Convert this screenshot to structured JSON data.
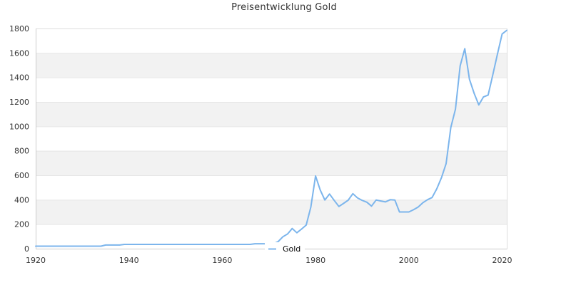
{
  "chart_data": {
    "type": "line",
    "title": "Preisentwicklung Gold",
    "xlabel": "",
    "ylabel": "",
    "xlim": [
      1920,
      2021
    ],
    "ylim": [
      0,
      1800
    ],
    "x_ticks": [
      1920,
      1940,
      1960,
      1980,
      2000,
      2020
    ],
    "y_ticks": [
      0,
      200,
      400,
      600,
      800,
      1000,
      1200,
      1400,
      1600,
      1800
    ],
    "grid": true,
    "alternating_bands": true,
    "legend": {
      "position": "bottom-center",
      "entries": [
        "Gold"
      ]
    },
    "series": [
      {
        "name": "Gold",
        "color": "#7cb5ec",
        "x": [
          1920,
          1921,
          1922,
          1923,
          1924,
          1925,
          1926,
          1927,
          1928,
          1929,
          1930,
          1931,
          1932,
          1933,
          1934,
          1935,
          1936,
          1937,
          1938,
          1939,
          1940,
          1941,
          1942,
          1943,
          1944,
          1945,
          1946,
          1947,
          1948,
          1949,
          1950,
          1951,
          1952,
          1953,
          1954,
          1955,
          1956,
          1957,
          1958,
          1959,
          1960,
          1961,
          1962,
          1963,
          1964,
          1965,
          1966,
          1967,
          1968,
          1969,
          1970,
          1971,
          1972,
          1973,
          1974,
          1975,
          1976,
          1977,
          1978,
          1979,
          1980,
          1981,
          1982,
          1983,
          1984,
          1985,
          1986,
          1987,
          1988,
          1989,
          1990,
          1991,
          1992,
          1993,
          1994,
          1995,
          1996,
          1997,
          1998,
          1999,
          2000,
          2001,
          2002,
          2003,
          2004,
          2005,
          2006,
          2007,
          2008,
          2009,
          2010,
          2011,
          2012,
          2013,
          2014,
          2015,
          2016,
          2017,
          2018,
          2019,
          2020,
          2021
        ],
        "values": [
          20.67,
          20.67,
          20.67,
          20.67,
          20.67,
          20.67,
          20.67,
          20.67,
          20.67,
          20.67,
          20.67,
          20.67,
          20.67,
          20.67,
          20.67,
          30,
          30,
          30,
          30,
          35,
          35,
          35,
          35,
          35,
          35,
          35,
          35,
          35,
          35,
          35,
          35,
          35,
          35,
          35,
          35,
          35,
          35,
          35,
          35,
          35,
          35,
          35,
          35,
          35,
          35,
          35,
          35,
          40,
          40,
          40,
          36,
          41,
          58,
          97,
          120,
          165,
          130,
          160,
          193,
          340,
          595,
          480,
          398,
          447,
          395,
          345,
          370,
          396,
          450,
          415,
          395,
          380,
          348,
          398,
          390,
          382,
          400,
          398,
          300,
          300,
          300,
          318,
          340,
          375,
          400,
          418,
          490,
          580,
          695,
          990,
          1140,
          1495,
          1635,
          1385,
          1270,
          1175,
          1240,
          1256,
          1420,
          1590,
          1755,
          1785
        ]
      }
    ]
  },
  "colors": {
    "series": "#7cb5ec",
    "band": "#f2f2f2",
    "grid": "#e6e6e6",
    "axis": "#cccccc",
    "text": "#333333"
  }
}
